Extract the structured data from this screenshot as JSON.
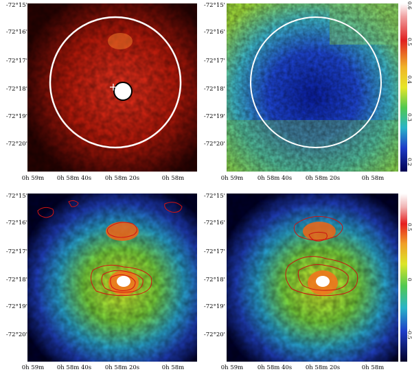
{
  "figure": {
    "y_ticks_top": [
      "-72°15'",
      "-72°16'",
      "-72°17'",
      "-72°18'",
      "-72°19'",
      "-72°20'"
    ],
    "y_ticks_bottom": [
      "-72°15'",
      "-72°16'",
      "-72°17'",
      "-72°18'",
      "-72°19'",
      "-72°20'"
    ],
    "x_ticks": [
      "0h 59m",
      "0h 58m 40s",
      "0h 58m 20s",
      "0h 58m"
    ],
    "colorbar_top_ticks": [
      "0.6",
      "0.5",
      "0.4",
      "0.3",
      "0.2"
    ],
    "colorbar_bottom_ticks": [
      "0.5",
      "0",
      "-0.5"
    ]
  },
  "colors": {
    "red_map": "#c81e0a",
    "contour": "#d21414",
    "circle": "#ffffff"
  }
}
